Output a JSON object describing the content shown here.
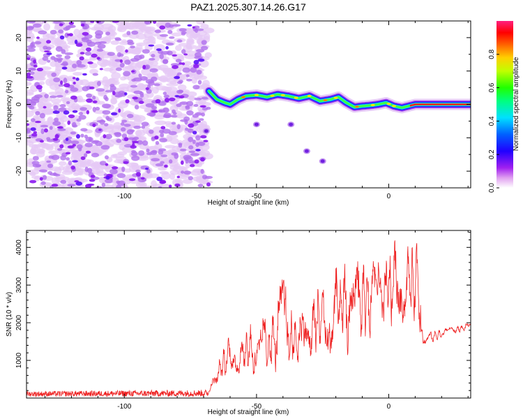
{
  "title": "PAZ1.2025.307.14.26.G17",
  "chart_data": [
    {
      "type": "heatmap",
      "xlabel": "Height of straight line (km)",
      "ylabel": "Frequency (Hz)",
      "xlim": [
        -137,
        31
      ],
      "ylim": [
        -25,
        25
      ],
      "xticks": [
        -100,
        -50,
        0
      ],
      "xtick_labels": [
        "-100",
        "-50",
        "0"
      ],
      "yticks": [
        -20,
        -10,
        0,
        10,
        20
      ],
      "ytick_labels": [
        "-20",
        "-10",
        "0",
        "10",
        "20"
      ],
      "colorbar": {
        "label": "Normalized spectral amplitude",
        "range": [
          0,
          1
        ],
        "ticks": [
          0.0,
          0.2,
          0.4,
          0.6,
          0.8
        ],
        "tick_labels": [
          "0.0",
          "0.2",
          "0.4",
          "0.6",
          "0.8"
        ],
        "colors": [
          "#e0a0f0",
          "#a020f0",
          "#0000ff",
          "#00e0ff",
          "#00ff00",
          "#ffff00",
          "#ff8000",
          "#ff0000",
          "#ff2080"
        ]
      },
      "noise_region_x": [
        -137,
        -68
      ],
      "signal_trace": {
        "x": [
          -68,
          -65,
          -62,
          -60,
          -57,
          -54,
          -50,
          -46,
          -42,
          -38,
          -34,
          -30,
          -26,
          -22,
          -19,
          -16,
          -13,
          -10,
          -7,
          -4,
          -1,
          2,
          5,
          10,
          15,
          20,
          25,
          31
        ],
        "y": [
          4,
          1.5,
          0.5,
          0,
          1.5,
          2.5,
          2.8,
          2.2,
          3,
          2.5,
          1.8,
          2.5,
          1,
          1.5,
          2.2,
          0.5,
          -0.8,
          -0.5,
          -0.3,
          0,
          0.5,
          -0.5,
          -1,
          0,
          0,
          0,
          0,
          0
        ]
      },
      "isolated_blobs": [
        {
          "x": -69,
          "y": -8
        },
        {
          "x": -50,
          "y": -6
        },
        {
          "x": -37,
          "y": -6
        },
        {
          "x": -31,
          "y": -14
        },
        {
          "x": -25,
          "y": -17
        }
      ]
    },
    {
      "type": "line",
      "xlabel": "Height of straight line (km)",
      "ylabel": "SNR (10 * v/v)",
      "xlim": [
        -137,
        31
      ],
      "ylim": [
        0,
        4450
      ],
      "xticks": [
        -100,
        -50,
        0
      ],
      "xtick_labels": [
        "-100",
        "-50",
        "0"
      ],
      "yticks": [
        1000,
        2000,
        3000,
        4000
      ],
      "ytick_labels": [
        "1000",
        "2000",
        "3000",
        "4000"
      ],
      "line_color": "#ee2020",
      "envelope": {
        "x": [
          -137,
          -68,
          -65,
          -60,
          -55,
          -50,
          -45,
          -40,
          -35,
          -30,
          -25,
          -20,
          -15,
          -10,
          -5,
          0,
          5,
          8,
          12,
          13,
          18,
          25,
          31
        ],
        "low": [
          40,
          40,
          300,
          500,
          600,
          400,
          500,
          400,
          600,
          700,
          900,
          900,
          1000,
          1100,
          1300,
          1500,
          1800,
          2100,
          1600,
          1300,
          1500,
          1700,
          1800
        ],
        "high": [
          180,
          220,
          900,
          1700,
          1700,
          2300,
          2200,
          3200,
          2200,
          2800,
          3100,
          3700,
          3500,
          3800,
          3600,
          4000,
          4400,
          3900,
          4300,
          1700,
          1800,
          1900,
          2000
        ]
      }
    }
  ]
}
